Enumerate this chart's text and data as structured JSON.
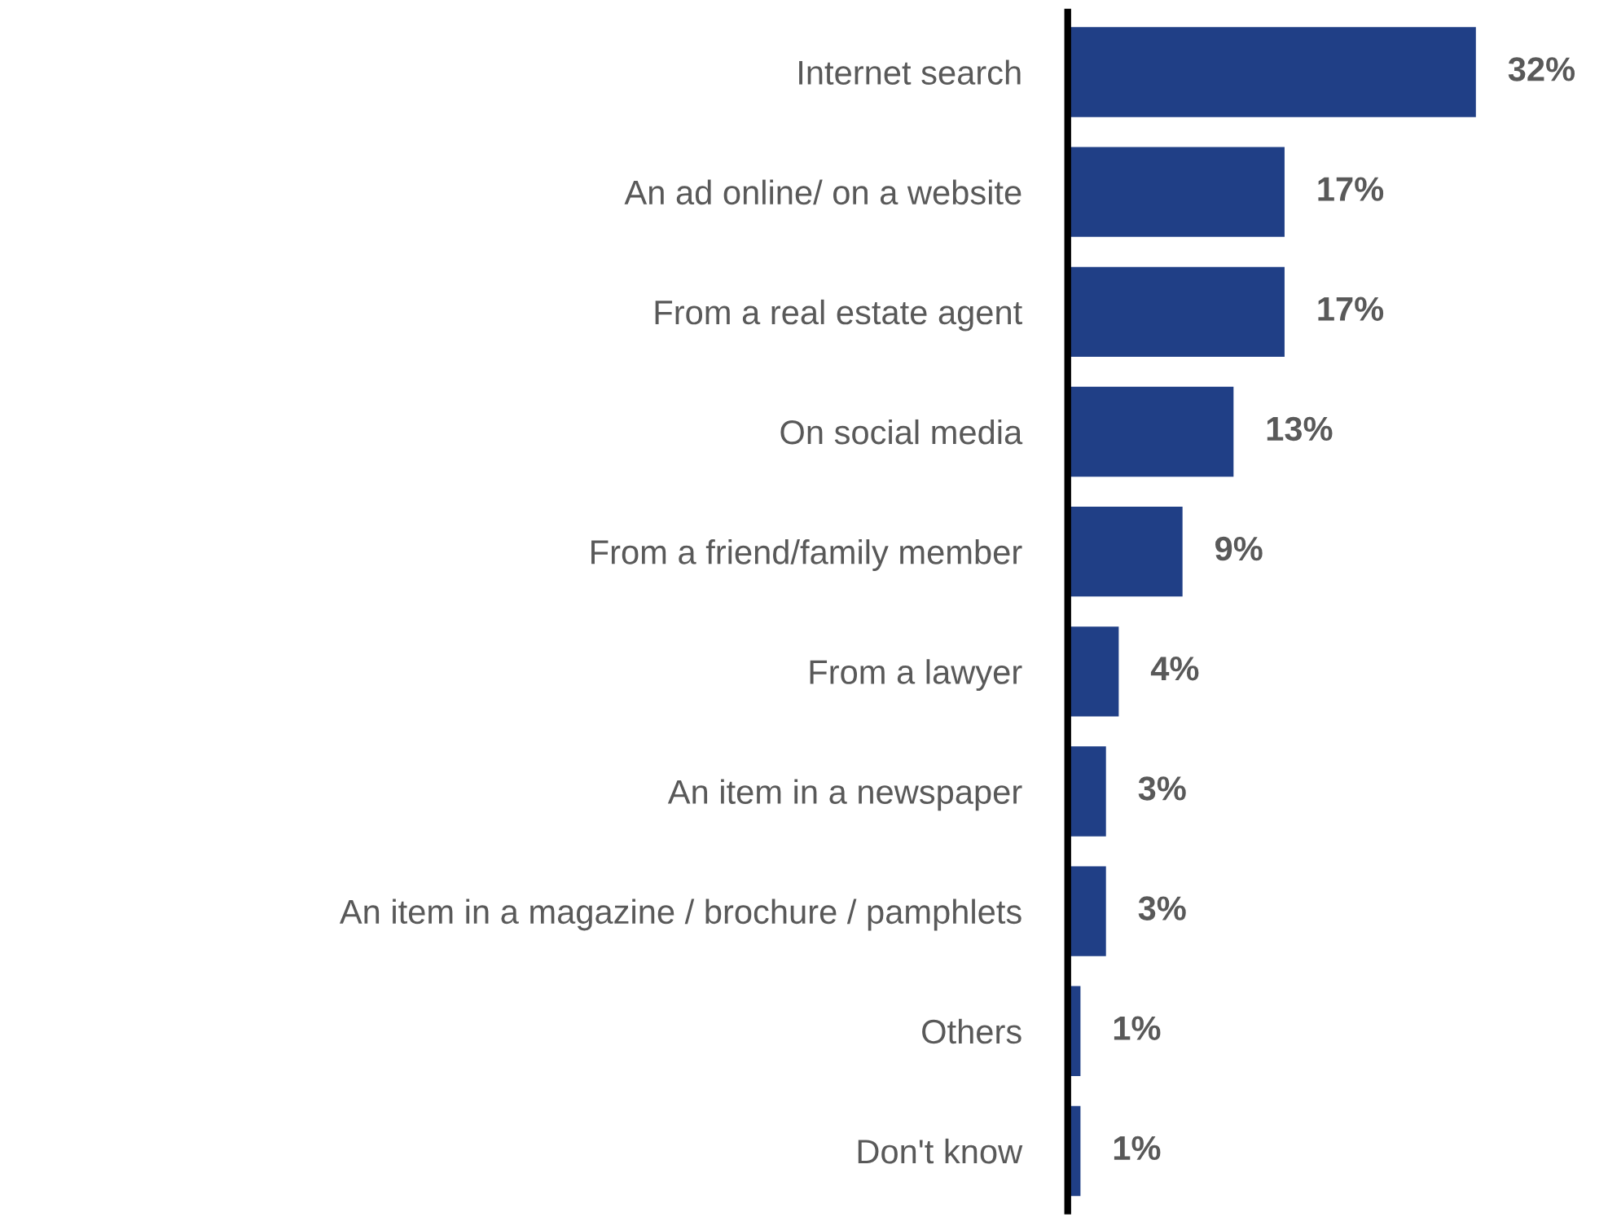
{
  "chart_data": {
    "type": "bar",
    "orientation": "horizontal",
    "categories": [
      "Internet search",
      "An ad online/ on a website",
      "From a real estate agent",
      "On social media",
      "From a friend/family member",
      "From a lawyer",
      "An item in a newspaper",
      "An item in a magazine / brochure / pamphlets",
      "Others",
      "Don't know"
    ],
    "values": [
      32,
      17,
      17,
      13,
      9,
      4,
      3,
      3,
      1,
      1
    ],
    "value_labels": [
      "32%",
      "17%",
      "17%",
      "13%",
      "9%",
      "4%",
      "3%",
      "3%",
      "1%",
      "1%"
    ],
    "color": "#203f86",
    "grid": false,
    "legend": false
  }
}
